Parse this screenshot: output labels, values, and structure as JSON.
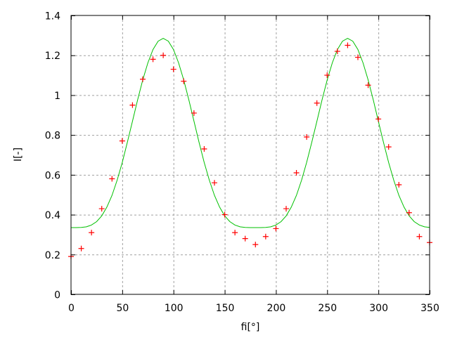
{
  "chart_data": {
    "type": "scatter",
    "title": "",
    "xlabel": "fi[°]",
    "ylabel": "I[-]",
    "xlim": [
      0,
      350
    ],
    "ylim": [
      0,
      1.4
    ],
    "grid": true,
    "xticks": [
      "0",
      "50",
      "100",
      "150",
      "200",
      "250",
      "300",
      "350"
    ],
    "xtick_values": [
      0,
      50,
      100,
      150,
      200,
      250,
      300,
      350
    ],
    "yticks": [
      "0",
      "0.2",
      "0.4",
      "0.6",
      "0.8",
      "1",
      "1.2",
      "1.4"
    ],
    "ytick_values": [
      0,
      0.2,
      0.4,
      0.6,
      0.8,
      1,
      1.2,
      1.4
    ],
    "series": [
      {
        "type": "scatter",
        "marker": "plus",
        "color": "#ff0000",
        "x": [
          0,
          10,
          20,
          30,
          40,
          50,
          60,
          70,
          80,
          90,
          100,
          110,
          120,
          130,
          140,
          150,
          160,
          170,
          180,
          190,
          200,
          210,
          220,
          230,
          240,
          250,
          260,
          270,
          280,
          290,
          300,
          310,
          320,
          330,
          340,
          350
        ],
        "y": [
          0.19,
          0.23,
          0.31,
          0.43,
          0.58,
          0.77,
          0.95,
          1.08,
          1.18,
          1.2,
          1.13,
          1.07,
          0.91,
          0.73,
          0.56,
          0.4,
          0.31,
          0.28,
          0.25,
          0.29,
          0.33,
          0.43,
          0.61,
          0.79,
          0.96,
          1.1,
          1.22,
          1.25,
          1.19,
          1.05,
          0.88,
          0.74,
          0.55,
          0.41,
          0.29,
          0.26
        ]
      },
      {
        "type": "line",
        "color": "#00c000",
        "x": [
          0,
          5,
          10,
          15,
          20,
          25,
          30,
          35,
          40,
          45,
          50,
          55,
          60,
          65,
          70,
          75,
          80,
          85,
          90,
          95,
          100,
          105,
          110,
          115,
          120,
          125,
          130,
          135,
          140,
          145,
          150,
          155,
          160,
          165,
          170,
          175,
          180,
          185,
          190,
          195,
          200,
          205,
          210,
          215,
          220,
          225,
          230,
          235,
          240,
          245,
          250,
          255,
          260,
          265,
          270,
          275,
          280,
          285,
          290,
          295,
          300,
          305,
          310,
          315,
          320,
          325,
          330,
          335,
          340,
          345,
          350
        ],
        "y": [
          0.335,
          0.335,
          0.336,
          0.339,
          0.348,
          0.365,
          0.394,
          0.438,
          0.497,
          0.573,
          0.662,
          0.763,
          0.869,
          0.976,
          1.076,
          1.162,
          1.229,
          1.271,
          1.285,
          1.271,
          1.229,
          1.162,
          1.076,
          0.976,
          0.869,
          0.763,
          0.662,
          0.573,
          0.497,
          0.438,
          0.394,
          0.365,
          0.348,
          0.339,
          0.336,
          0.335,
          0.335,
          0.335,
          0.336,
          0.339,
          0.348,
          0.365,
          0.394,
          0.438,
          0.497,
          0.573,
          0.662,
          0.763,
          0.869,
          0.976,
          1.076,
          1.162,
          1.229,
          1.271,
          1.285,
          1.271,
          1.229,
          1.162,
          1.076,
          0.976,
          0.869,
          0.763,
          0.662,
          0.573,
          0.497,
          0.438,
          0.394,
          0.365,
          0.348,
          0.339,
          0.336
        ]
      }
    ]
  }
}
